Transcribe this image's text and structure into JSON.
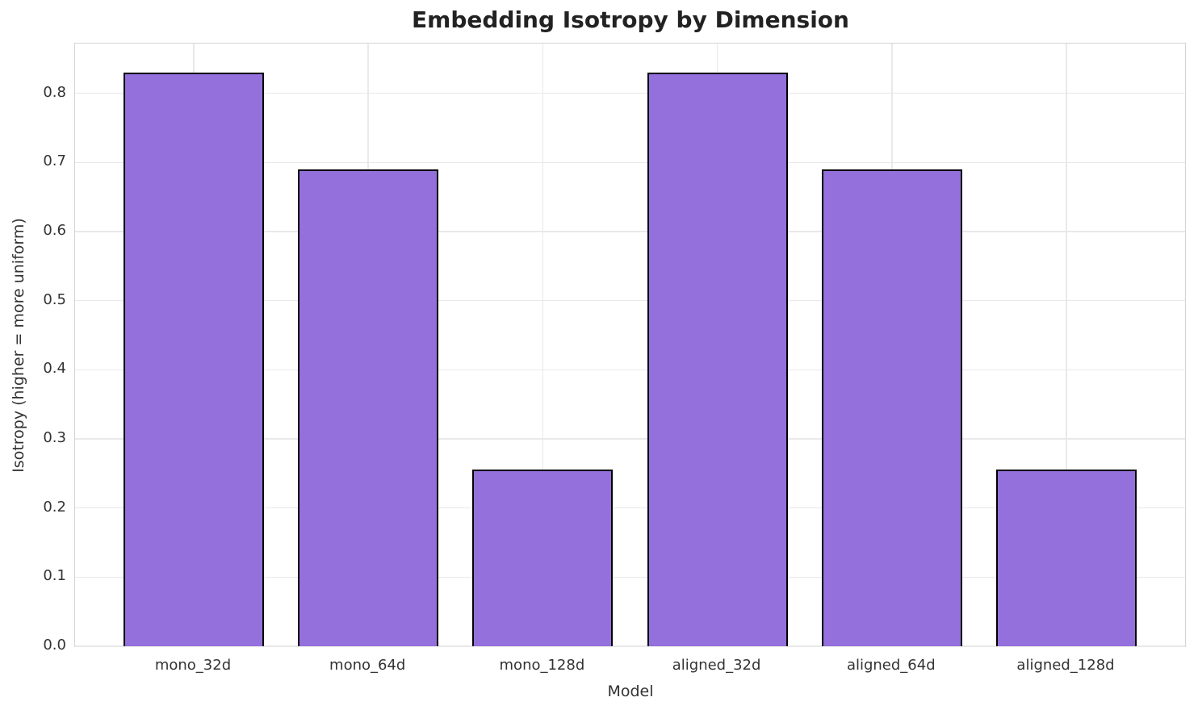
{
  "chart_data": {
    "type": "bar",
    "title": "Embedding Isotropy by Dimension",
    "xlabel": "Model",
    "ylabel": "Isotropy (higher = more uniform)",
    "categories": [
      "mono_32d",
      "mono_64d",
      "mono_128d",
      "aligned_32d",
      "aligned_64d",
      "aligned_128d"
    ],
    "values": [
      0.83,
      0.69,
      0.256,
      0.83,
      0.69,
      0.256
    ],
    "yticks": [
      0.0,
      0.1,
      0.2,
      0.3,
      0.4,
      0.5,
      0.6,
      0.7,
      0.8
    ],
    "ylim": [
      0,
      0.872
    ],
    "grid": true,
    "legend": "none",
    "colors": {
      "bar_fill": "#9370DB",
      "bar_edge": "#000000",
      "grid": "#e9e9e9",
      "spine": "#d4d4d4",
      "title_text": "#222222",
      "tick_text": "#333333",
      "background": "#ffffff"
    }
  }
}
